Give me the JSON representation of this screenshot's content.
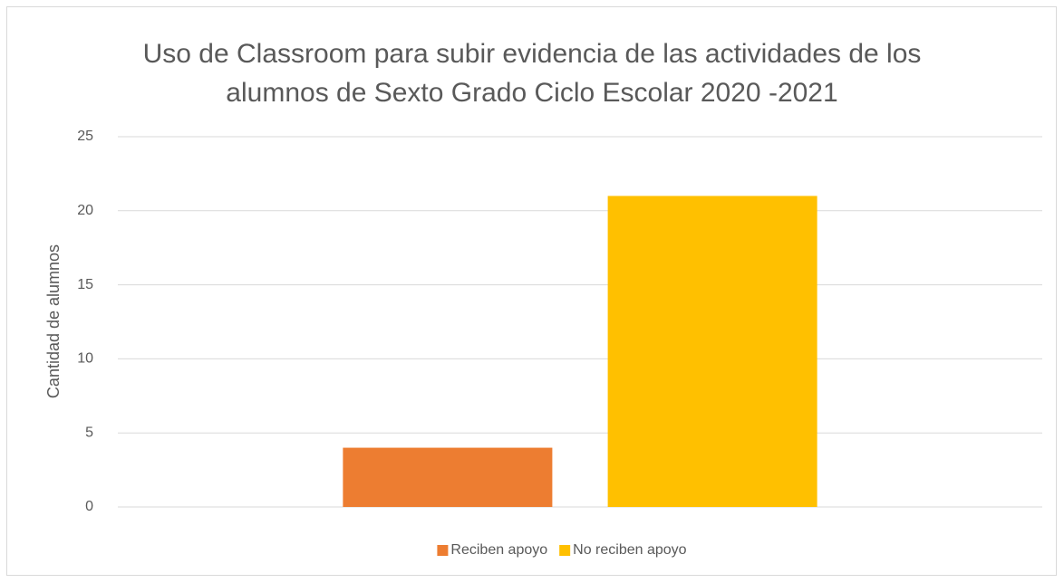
{
  "chart_data": {
    "type": "bar",
    "title": "Uso de Classroom para subir evidencia de las actividades de los alumnos de Sexto Grado Ciclo Escolar 2020 -2021",
    "y_label": "Cantidad de alumnos",
    "categories": [
      null
    ],
    "series": [
      {
        "name": "Reciben apoyo",
        "color": "#ed7d31",
        "values": [
          4
        ]
      },
      {
        "name": "No reciben apoyo",
        "color": "#ffc000",
        "values": [
          21
        ]
      }
    ],
    "ylim": [
      0,
      25
    ],
    "yticks": [
      0,
      5,
      10,
      15,
      20,
      25
    ],
    "grid": true,
    "legend": "bottom"
  }
}
